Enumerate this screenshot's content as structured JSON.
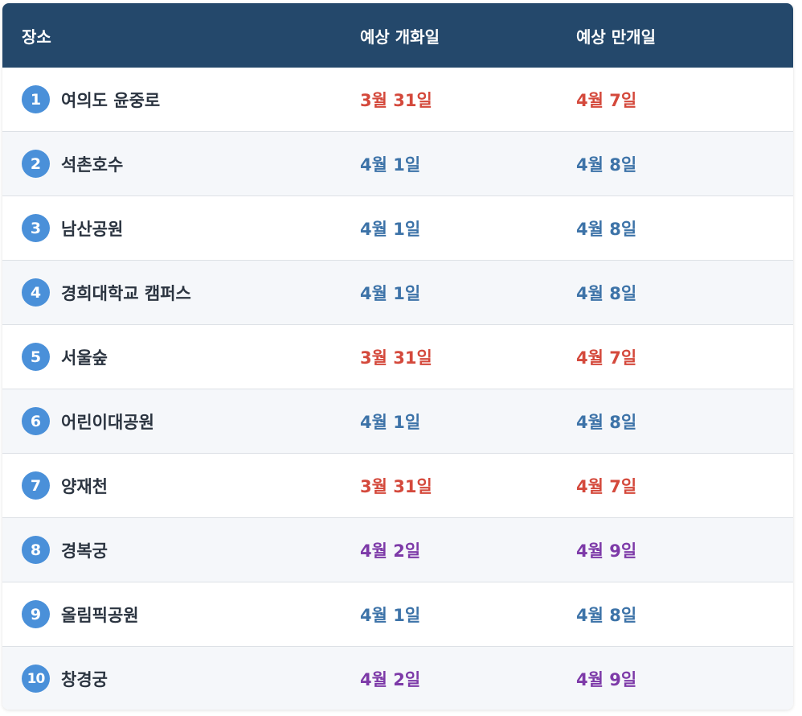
{
  "header": {
    "place": "장소",
    "bloom": "예상 개화일",
    "peak": "예상 만개일"
  },
  "colors": {
    "header_bg": "#24486b",
    "rank_badge": "#4a90d9",
    "early": "#d4493c",
    "normal": "#3d73a8",
    "late": "#7d3aa8"
  },
  "rows": [
    {
      "rank": "1",
      "place": "여의도 윤중로",
      "bloom": "3월 31일",
      "peak": "4월 7일",
      "tone": "red"
    },
    {
      "rank": "2",
      "place": "석촌호수",
      "bloom": "4월 1일",
      "peak": "4월 8일",
      "tone": "blue"
    },
    {
      "rank": "3",
      "place": "남산공원",
      "bloom": "4월 1일",
      "peak": "4월 8일",
      "tone": "blue"
    },
    {
      "rank": "4",
      "place": "경희대학교 캠퍼스",
      "bloom": "4월 1일",
      "peak": "4월 8일",
      "tone": "blue"
    },
    {
      "rank": "5",
      "place": "서울숲",
      "bloom": "3월 31일",
      "peak": "4월 7일",
      "tone": "red"
    },
    {
      "rank": "6",
      "place": "어린이대공원",
      "bloom": "4월 1일",
      "peak": "4월 8일",
      "tone": "blue"
    },
    {
      "rank": "7",
      "place": "양재천",
      "bloom": "3월 31일",
      "peak": "4월 7일",
      "tone": "red"
    },
    {
      "rank": "8",
      "place": "경복궁",
      "bloom": "4월 2일",
      "peak": "4월 9일",
      "tone": "purple"
    },
    {
      "rank": "9",
      "place": "올림픽공원",
      "bloom": "4월 1일",
      "peak": "4월 8일",
      "tone": "blue"
    },
    {
      "rank": "10",
      "place": "창경궁",
      "bloom": "4월 2일",
      "peak": "4월 9일",
      "tone": "purple"
    }
  ]
}
